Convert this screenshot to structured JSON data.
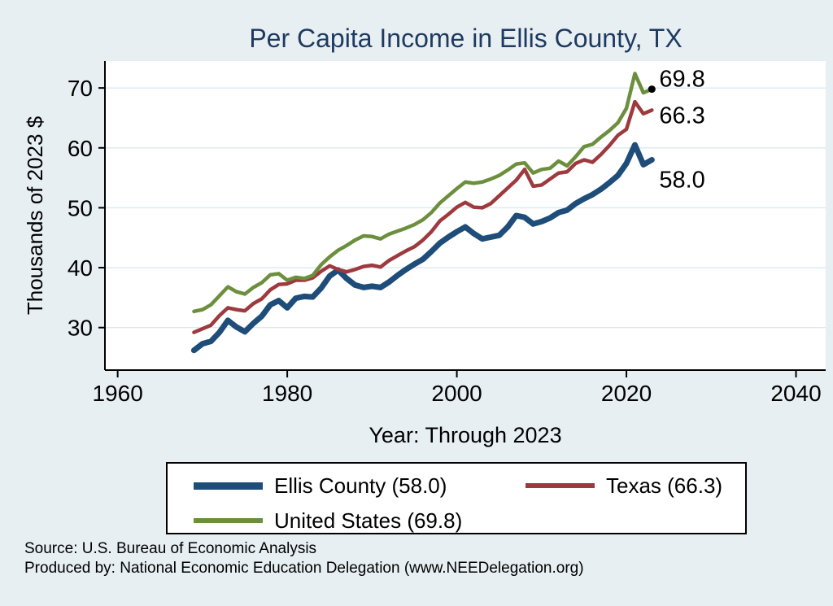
{
  "page": {
    "background": "#e7eff3",
    "plot_background": "#ffffff",
    "title_color": "#1e3a5f",
    "gridline_color": "#dce9ef",
    "axis_color": "#000000"
  },
  "chart_data": {
    "type": "line",
    "title": "Per Capita Income in Ellis County, TX",
    "xlabel": "Year: Through 2023",
    "ylabel": "Thousands of 2023 $",
    "xlim": [
      1958.5,
      2043.5
    ],
    "ylim": [
      22.9,
      74.5
    ],
    "xticks": [
      1960,
      1980,
      2000,
      2020,
      2040
    ],
    "yticks": [
      30,
      40,
      50,
      60,
      70
    ],
    "grid": true,
    "legend_position": "bottom",
    "x": [
      1969,
      1970,
      1971,
      1972,
      1973,
      1974,
      1975,
      1976,
      1977,
      1978,
      1979,
      1980,
      1981,
      1982,
      1983,
      1984,
      1985,
      1986,
      1987,
      1988,
      1989,
      1990,
      1991,
      1992,
      1993,
      1994,
      1995,
      1996,
      1997,
      1998,
      1999,
      2000,
      2001,
      2002,
      2003,
      2004,
      2005,
      2006,
      2007,
      2008,
      2009,
      2010,
      2011,
      2012,
      2013,
      2014,
      2015,
      2016,
      2017,
      2018,
      2019,
      2020,
      2021,
      2022,
      2023
    ],
    "series": [
      {
        "name": "Ellis County",
        "color": "#1d4d78",
        "end_label": "58.0",
        "end_value": 58.0,
        "values": [
          26.2,
          27.3,
          27.7,
          29.2,
          31.2,
          30.1,
          29.3,
          30.7,
          31.9,
          33.8,
          34.5,
          33.3,
          34.9,
          35.2,
          35.1,
          36.6,
          38.6,
          39.6,
          38.2,
          37.1,
          36.7,
          36.9,
          36.7,
          37.6,
          38.7,
          39.7,
          40.6,
          41.4,
          42.7,
          44.1,
          45.1,
          46.0,
          46.8,
          45.7,
          44.8,
          45.1,
          45.4,
          46.8,
          48.7,
          48.4,
          47.3,
          47.7,
          48.3,
          49.2,
          49.6,
          50.7,
          51.5,
          52.2,
          53.1,
          54.2,
          55.4,
          57.4,
          60.5,
          57.2,
          58.0
        ]
      },
      {
        "name": "Texas",
        "color": "#9e3a3e",
        "end_label": "66.3",
        "end_value": 66.3,
        "values": [
          29.2,
          29.8,
          30.4,
          32.0,
          33.3,
          33.0,
          32.8,
          34.0,
          34.8,
          36.3,
          37.2,
          37.3,
          37.9,
          37.9,
          38.3,
          39.4,
          40.3,
          39.7,
          39.3,
          39.7,
          40.2,
          40.4,
          40.1,
          41.2,
          42.0,
          42.8,
          43.5,
          44.6,
          46.0,
          47.8,
          48.9,
          50.1,
          50.9,
          50.1,
          50.0,
          50.7,
          52.0,
          53.3,
          54.6,
          56.4,
          53.6,
          53.8,
          54.8,
          55.8,
          56.0,
          57.4,
          58.0,
          57.6,
          58.9,
          60.4,
          62.1,
          63.1,
          67.7,
          65.7,
          66.3
        ]
      },
      {
        "name": "United States",
        "color": "#6c8f3e",
        "end_label": "69.8",
        "end_value": 69.8,
        "end_dot": true,
        "values": [
          32.7,
          33.0,
          33.8,
          35.3,
          36.8,
          36.0,
          35.6,
          36.7,
          37.5,
          38.8,
          39.0,
          37.9,
          38.4,
          38.2,
          38.7,
          40.5,
          41.8,
          42.9,
          43.7,
          44.6,
          45.3,
          45.2,
          44.8,
          45.6,
          46.1,
          46.6,
          47.2,
          48.0,
          49.2,
          50.8,
          52.0,
          53.2,
          54.3,
          54.1,
          54.3,
          54.8,
          55.4,
          56.3,
          57.3,
          57.5,
          55.8,
          56.4,
          56.6,
          57.8,
          57.0,
          58.5,
          60.2,
          60.6,
          61.8,
          62.9,
          64.2,
          66.6,
          72.4,
          69.2,
          69.8
        ]
      }
    ]
  },
  "legend": {
    "items": [
      {
        "label": "Ellis County (58.0)"
      },
      {
        "label": "Texas (66.3)"
      },
      {
        "label": "United States (69.8)"
      }
    ]
  },
  "footer": {
    "line1": "Source: U.S. Bureau of Economic Analysis",
    "line2": "Produced by: National Economic Education Delegation (www.NEEDelegation.org)"
  }
}
